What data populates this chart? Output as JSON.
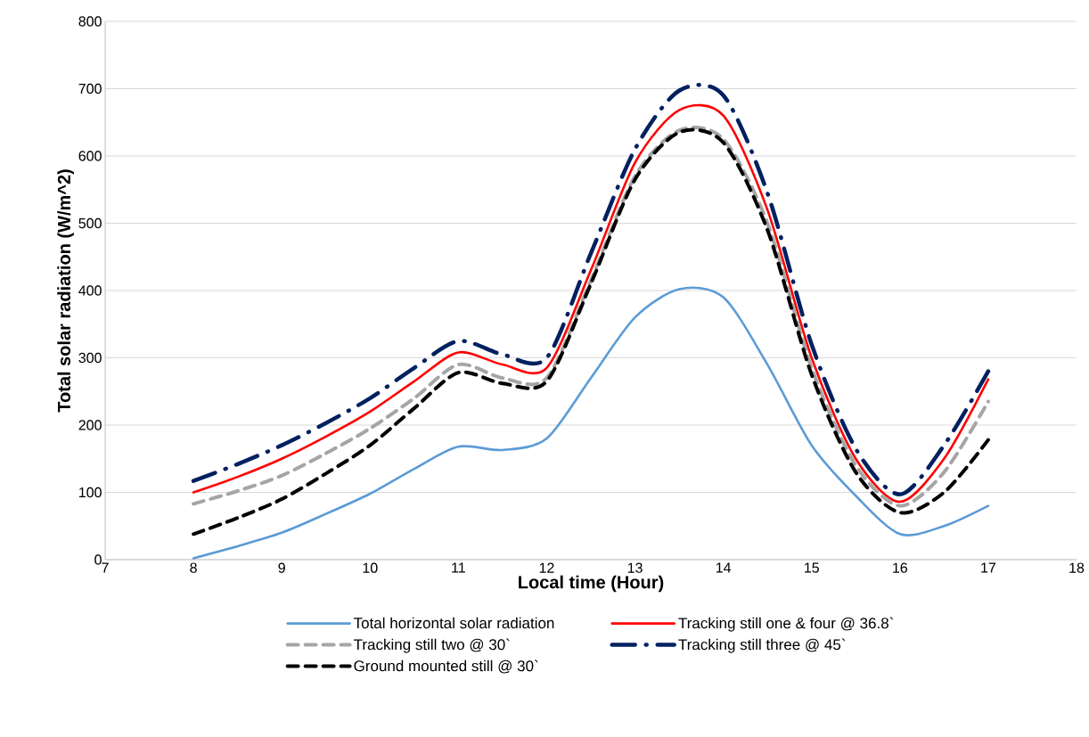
{
  "chart_data": {
    "type": "line",
    "xlabel": "Local time (Hour)",
    "ylabel": "Total solar radiation (W/m^2)",
    "x": [
      8,
      8.5,
      9,
      9.5,
      10,
      10.5,
      11,
      11.5,
      12,
      12.5,
      13,
      13.5,
      14,
      14.5,
      15,
      15.5,
      16,
      16.5,
      17
    ],
    "series": [
      {
        "name": "Total horizontal solar radiation",
        "color": "#5b9bd5",
        "line_style": "solid",
        "values": [
          2,
          20,
          40,
          68,
          98,
          135,
          168,
          163,
          180,
          270,
          360,
          402,
          390,
          290,
          170,
          95,
          38,
          50,
          80
        ]
      },
      {
        "name": "Tracking still one & four @ 36.8`",
        "color": "#ff0000",
        "line_style": "solid",
        "values": [
          100,
          123,
          150,
          183,
          220,
          265,
          308,
          290,
          285,
          430,
          590,
          668,
          660,
          520,
          300,
          150,
          86,
          150,
          268
        ]
      },
      {
        "name": "Tracking still two @ 30`",
        "color": "#a5a5a5",
        "line_style": "dashed",
        "values": [
          83,
          102,
          125,
          158,
          195,
          240,
          290,
          270,
          270,
          415,
          570,
          638,
          625,
          500,
          285,
          140,
          80,
          130,
          235
        ]
      },
      {
        "name": "Tracking still three @ 45`",
        "color": "#002060",
        "line_style": "dashdot",
        "values": [
          117,
          142,
          170,
          203,
          240,
          285,
          325,
          305,
          300,
          455,
          610,
          697,
          690,
          545,
          320,
          165,
          97,
          170,
          280
        ]
      },
      {
        "name": "Ground mounted still @ 30`",
        "color": "#000000",
        "line_style": "dashed",
        "values": [
          38,
          62,
          90,
          128,
          170,
          225,
          278,
          262,
          265,
          410,
          565,
          635,
          620,
          490,
          275,
          130,
          70,
          100,
          178
        ]
      }
    ],
    "xlim": [
      7,
      18
    ],
    "xticks": [
      7,
      8,
      9,
      10,
      11,
      12,
      13,
      14,
      15,
      16,
      17,
      18
    ],
    "ylim": [
      0,
      800
    ],
    "yticks": [
      0,
      100,
      200,
      300,
      400,
      500,
      600,
      700,
      800
    ],
    "grid": "y",
    "legend": "bottom"
  }
}
